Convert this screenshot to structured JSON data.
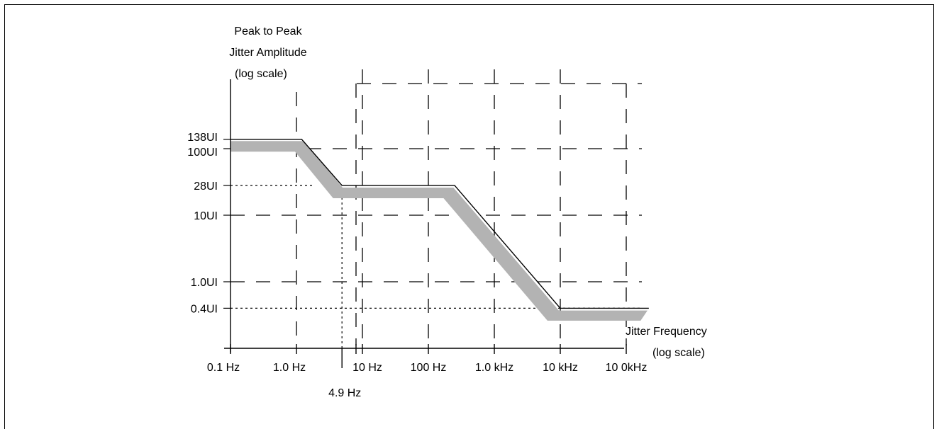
{
  "chart_data": {
    "type": "line",
    "title": "",
    "ylabel": [
      "Peak to Peak",
      "Jitter Amplitude",
      "(log scale)"
    ],
    "xlabel": [
      "Jitter Frequency",
      "(log scale)"
    ],
    "x_scale": "log",
    "y_scale": "log",
    "x_ticks": [
      {
        "label": "0.1 Hz",
        "value": 0.1
      },
      {
        "label": "1.0 Hz",
        "value": 1
      },
      {
        "label": "10 Hz",
        "value": 10
      },
      {
        "label": "100 Hz",
        "value": 100
      },
      {
        "label": "1.0 kHz",
        "value": 1000
      },
      {
        "label": "10 kHz",
        "value": 10000
      },
      {
        "label": "10 0kHz",
        "value": 100000
      }
    ],
    "x_annotation": {
      "label": "4.9 Hz",
      "value": 4.9
    },
    "y_ticks": [
      {
        "label": "138UI",
        "value": 138
      },
      {
        "label": "100UI",
        "value": 100
      },
      {
        "label": "28UI",
        "value": 28
      },
      {
        "label": "10UI",
        "value": 10
      },
      {
        "label": "1.0UI",
        "value": 1
      },
      {
        "label": "0.4UI",
        "value": 0.4
      }
    ],
    "mask_upper": [
      {
        "x": 0.1,
        "y": 138
      },
      {
        "x": 1.2,
        "y": 138
      },
      {
        "x": 4.9,
        "y": 28
      },
      {
        "x": 250,
        "y": 28
      },
      {
        "x": 10000,
        "y": 0.4
      },
      {
        "x": 220000,
        "y": 0.4
      }
    ],
    "tolerance_band": {
      "top": [
        {
          "x": 0.1,
          "y": 130
        },
        {
          "x": 1.3,
          "y": 130
        },
        {
          "x": 5.0,
          "y": 26
        },
        {
          "x": 240,
          "y": 26
        },
        {
          "x": 9500,
          "y": 0.37
        },
        {
          "x": 210000,
          "y": 0.37
        }
      ],
      "bottom": [
        {
          "x": 0.1,
          "y": 90
        },
        {
          "x": 0.95,
          "y": 90
        },
        {
          "x": 3.6,
          "y": 18
        },
        {
          "x": 170,
          "y": 18
        },
        {
          "x": 6400,
          "y": 0.26
        },
        {
          "x": 165000,
          "y": 0.26
        }
      ]
    },
    "grid": true,
    "grid_style": "dashed",
    "dotted_guides": [
      28,
      0.4
    ],
    "band_color": "#b3b3b3",
    "line_color": "#000000"
  }
}
